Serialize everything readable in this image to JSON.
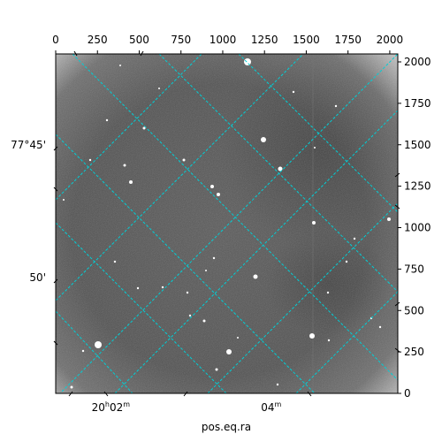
{
  "chart_data": {
    "type": "image",
    "description_free": true,
    "pixel_axes": {
      "x_ticks": [
        "0",
        "250",
        "500",
        "750",
        "1000",
        "1250",
        "1500",
        "1750",
        "2000"
      ],
      "x_values": [
        0,
        250,
        500,
        750,
        1000,
        1250,
        1500,
        1750,
        2000
      ],
      "y_ticks": [
        "0",
        "250",
        "500",
        "750",
        "1000",
        "1250",
        "1500",
        "1750",
        "2000"
      ],
      "y_values": [
        0,
        250,
        500,
        750,
        1000,
        1250,
        1500,
        1750,
        2000
      ],
      "xlim": [
        0,
        2048
      ],
      "ylim": [
        0,
        2048
      ]
    },
    "world_axes": {
      "dec_labels": [
        {
          "text": "77°45'",
          "y": 1500
        },
        {
          "text": "50'",
          "y": 700
        }
      ],
      "ra_labels": [
        {
          "hours": "20",
          "minutes": "02",
          "x": 330
        },
        {
          "hours": null,
          "minutes": "04",
          "x": 1290
        }
      ],
      "xlabel": "pos.eq.ra"
    },
    "colors": {
      "grid": "#00cfd6",
      "frame": "#000000"
    }
  }
}
